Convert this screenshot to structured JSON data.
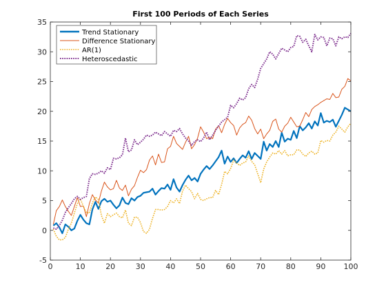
{
  "chart_data": {
    "type": "line",
    "title": "First 100 Periods of Each Series",
    "xlabel": "",
    "ylabel": "",
    "xlim": [
      0,
      100
    ],
    "ylim": [
      -5,
      35
    ],
    "x_ticks": [
      0,
      10,
      20,
      30,
      40,
      50,
      60,
      70,
      80,
      90,
      100
    ],
    "y_ticks": [
      -5,
      0,
      5,
      10,
      15,
      20,
      25,
      30,
      35
    ],
    "grid": false,
    "legend_position": "top-left",
    "series": [
      {
        "name": "Trend Stationary",
        "color": "#0072BD",
        "style": "solid-thick",
        "x": [
          1,
          2,
          3,
          4,
          5,
          6,
          7,
          8,
          9,
          10,
          11,
          12,
          13,
          14,
          15,
          16,
          17,
          18,
          19,
          20,
          21,
          22,
          23,
          24,
          25,
          26,
          27,
          28,
          29,
          30,
          31,
          32,
          33,
          34,
          35,
          36,
          37,
          38,
          39,
          40,
          41,
          42,
          43,
          44,
          45,
          46,
          47,
          48,
          49,
          50,
          51,
          52,
          53,
          54,
          55,
          56,
          57,
          58,
          59,
          60,
          61,
          62,
          63,
          64,
          65,
          66,
          67,
          68,
          69,
          70,
          71,
          72,
          73,
          74,
          75,
          76,
          77,
          78,
          79,
          80,
          81,
          82,
          83,
          84,
          85,
          86,
          87,
          88,
          89,
          90,
          91,
          92,
          93,
          94,
          95,
          96,
          97,
          98,
          99,
          100
        ],
        "values": [
          0.8,
          1.2,
          0.5,
          -0.5,
          1.0,
          0.6,
          0.0,
          0.3,
          1.6,
          2.6,
          1.8,
          1.2,
          1.0,
          3.5,
          4.8,
          3.6,
          4.9,
          5.3,
          4.8,
          5.0,
          4.3,
          3.7,
          4.2,
          5.5,
          4.6,
          4.4,
          5.4,
          5.0,
          5.6,
          5.8,
          6.3,
          6.4,
          6.5,
          7.0,
          6.0,
          6.6,
          7.1,
          7.0,
          7.7,
          6.8,
          8.6,
          7.2,
          6.5,
          7.6,
          8.5,
          9.2,
          8.4,
          8.8,
          8.2,
          9.5,
          10.2,
          10.8,
          10.3,
          10.9,
          11.6,
          12.3,
          13.4,
          11.2,
          12.4,
          11.5,
          12.1,
          11.3,
          12.0,
          12.6,
          12.2,
          13.3,
          12.0,
          13.0,
          12.5,
          12.0,
          14.9,
          13.4,
          14.5,
          14.0,
          15.0,
          14.0,
          16.4,
          14.9,
          15.4,
          15.2,
          16.7,
          15.5,
          17.5,
          16.8,
          17.3,
          18.0,
          17.1,
          18.3,
          17.6,
          19.7,
          18.1,
          18.4,
          18.2,
          18.6,
          17.4,
          18.4,
          19.4,
          20.6,
          20.3,
          20.0
        ]
      },
      {
        "name": "Difference Stationary",
        "color": "#D95319",
        "style": "solid-thin",
        "x": [
          1,
          2,
          3,
          4,
          5,
          6,
          7,
          8,
          9,
          10,
          11,
          12,
          13,
          14,
          15,
          16,
          17,
          18,
          19,
          20,
          21,
          22,
          23,
          24,
          25,
          26,
          27,
          28,
          29,
          30,
          31,
          32,
          33,
          34,
          35,
          36,
          37,
          38,
          39,
          40,
          41,
          42,
          43,
          44,
          45,
          46,
          47,
          48,
          49,
          50,
          51,
          52,
          53,
          54,
          55,
          56,
          57,
          58,
          59,
          60,
          61,
          62,
          63,
          64,
          65,
          66,
          67,
          68,
          69,
          70,
          71,
          72,
          73,
          74,
          75,
          76,
          77,
          78,
          79,
          80,
          81,
          82,
          83,
          84,
          85,
          86,
          87,
          88,
          89,
          90,
          91,
          92,
          93,
          94,
          95,
          96,
          97,
          98,
          99,
          100
        ],
        "values": [
          1.0,
          3.3,
          4.0,
          5.1,
          4.0,
          3.2,
          2.5,
          4.0,
          5.5,
          4.0,
          4.1,
          2.3,
          4.5,
          6.0,
          5.1,
          4.6,
          6.6,
          8.1,
          7.3,
          6.8,
          7.0,
          8.4,
          7.1,
          6.7,
          7.6,
          5.8,
          6.9,
          7.5,
          8.9,
          10.1,
          9.7,
          10.2,
          11.8,
          12.5,
          11.0,
          12.8,
          11.4,
          11.5,
          13.7,
          14.1,
          15.8,
          14.6,
          14.1,
          13.6,
          14.8,
          15.8,
          13.7,
          14.4,
          15.5,
          17.4,
          16.5,
          15.4,
          15.6,
          15.4,
          17.0,
          17.6,
          16.4,
          17.8,
          18.8,
          18.1,
          17.6,
          16.0,
          17.2,
          17.8,
          18.1,
          19.2,
          18.5,
          17.1,
          16.2,
          17.0,
          15.4,
          16.2,
          16.8,
          18.3,
          18.7,
          17.0,
          16.5,
          17.5,
          18.0,
          19.0,
          18.2,
          17.4,
          17.5,
          18.6,
          19.8,
          19.1,
          20.3,
          20.8,
          21.1,
          21.5,
          21.8,
          22.1,
          22.0,
          23.0,
          22.3,
          22.4,
          23.7,
          24.2,
          25.5,
          25.1
        ]
      },
      {
        "name": "AR(1)",
        "color": "#EDB120",
        "style": "dotted",
        "x": [
          1,
          2,
          3,
          4,
          5,
          6,
          7,
          8,
          9,
          10,
          11,
          12,
          13,
          14,
          15,
          16,
          17,
          18,
          19,
          20,
          21,
          22,
          23,
          24,
          25,
          26,
          27,
          28,
          29,
          30,
          31,
          32,
          33,
          34,
          35,
          36,
          37,
          38,
          39,
          40,
          41,
          42,
          43,
          44,
          45,
          46,
          47,
          48,
          49,
          50,
          51,
          52,
          53,
          54,
          55,
          56,
          57,
          58,
          59,
          60,
          61,
          62,
          63,
          64,
          65,
          66,
          67,
          68,
          69,
          70,
          71,
          72,
          73,
          74,
          75,
          76,
          77,
          78,
          79,
          80,
          81,
          82,
          83,
          84,
          85,
          86,
          87,
          88,
          89,
          90,
          91,
          92,
          93,
          94,
          95,
          96,
          97,
          98,
          99,
          100
        ],
        "values": [
          0.2,
          -1.0,
          -1.6,
          -1.6,
          -1.2,
          0.2,
          1.2,
          2.9,
          4.5,
          5.3,
          4.0,
          3.0,
          2.9,
          4.6,
          5.6,
          5.2,
          2.5,
          1.2,
          2.8,
          2.3,
          2.6,
          2.9,
          2.3,
          2.1,
          3.4,
          1.2,
          0.8,
          2.2,
          2.2,
          1.3,
          -0.2,
          -0.5,
          0.2,
          2.0,
          3.5,
          3.5,
          3.4,
          3.5,
          4.0,
          5.0,
          4.6,
          5.3,
          4.5,
          6.6,
          7.6,
          7.0,
          6.5,
          5.3,
          6.2,
          5.2,
          5.0,
          5.3,
          5.5,
          5.5,
          6.7,
          6.0,
          7.7,
          9.9,
          9.5,
          10.4,
          11.8,
          11.3,
          10.9,
          11.3,
          11.5,
          12.5,
          11.6,
          11.0,
          9.5,
          8.0,
          10.3,
          11.5,
          12.3,
          13.0,
          12.8,
          13.4,
          12.8,
          13.4,
          12.5,
          12.7,
          12.7,
          13.5,
          13.5,
          12.8,
          12.4,
          13.0,
          13.3,
          12.8,
          13.0,
          15.1,
          14.8,
          15.1,
          15.0,
          16.0,
          16.5,
          17.5,
          17.0,
          16.5,
          17.4,
          18.0
        ]
      },
      {
        "name": "Heteroscedastic",
        "color": "#7E2F8E",
        "style": "dotted-thick",
        "x": [
          1,
          2,
          3,
          4,
          5,
          6,
          7,
          8,
          9,
          10,
          11,
          12,
          13,
          14,
          15,
          16,
          17,
          18,
          19,
          20,
          21,
          22,
          23,
          24,
          25,
          26,
          27,
          28,
          29,
          30,
          31,
          32,
          33,
          34,
          35,
          36,
          37,
          38,
          39,
          40,
          41,
          42,
          43,
          44,
          45,
          46,
          47,
          48,
          49,
          50,
          51,
          52,
          53,
          54,
          55,
          56,
          57,
          58,
          59,
          60,
          61,
          62,
          63,
          64,
          65,
          66,
          67,
          68,
          69,
          70,
          71,
          72,
          73,
          74,
          75,
          76,
          77,
          78,
          79,
          80,
          81,
          82,
          83,
          84,
          85,
          86,
          87,
          88,
          89,
          90,
          91,
          92,
          93,
          94,
          95,
          96,
          97,
          98,
          99,
          100
        ],
        "values": [
          0.4,
          0.2,
          0.8,
          1.7,
          3.0,
          3.8,
          4.5,
          5.3,
          5.7,
          5.2,
          5.5,
          5.7,
          8.7,
          9.5,
          9.4,
          9.6,
          10.0,
          9.6,
          10.5,
          10.2,
          12.1,
          12.0,
          12.2,
          12.7,
          15.5,
          13.2,
          13.5,
          15.2,
          14.4,
          14.8,
          15.3,
          16.0,
          15.8,
          16.0,
          16.5,
          16.2,
          15.9,
          16.6,
          16.2,
          15.8,
          16.8,
          16.6,
          17.1,
          16.2,
          15.5,
          15.0,
          14.3,
          14.9,
          15.2,
          14.9,
          15.5,
          16.5,
          15.2,
          16.0,
          16.8,
          17.5,
          18.2,
          18.6,
          19.0,
          21.0,
          20.6,
          21.3,
          22.2,
          21.9,
          22.3,
          23.8,
          24.5,
          24.0,
          25.4,
          27.2,
          28.0,
          28.8,
          30.0,
          29.6,
          28.8,
          29.7,
          30.6,
          30.3,
          30.0,
          30.7,
          30.9,
          32.7,
          32.6,
          31.6,
          32.1,
          31.0,
          30.0,
          32.9,
          32.0,
          32.5,
          32.4,
          31.0,
          32.3,
          32.2,
          31.0,
          32.5,
          32.2,
          32.5,
          32.4,
          33.1
        ]
      }
    ]
  }
}
